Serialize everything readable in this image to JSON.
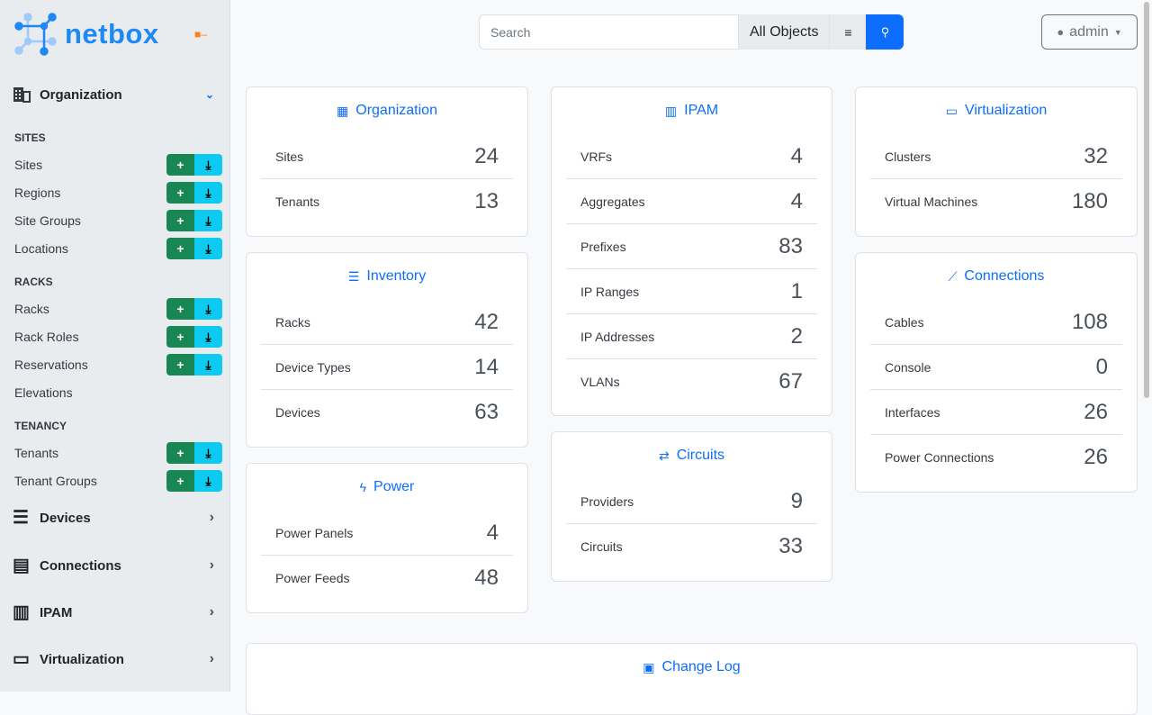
{
  "brand": {
    "name": "netbox",
    "accent": "#0d6efd"
  },
  "sidebar": {
    "expanded": {
      "label": "Organization",
      "icon": "building-icon"
    },
    "groups": [
      {
        "label": "SITES",
        "items": [
          {
            "label": "Sites",
            "buttons": true
          },
          {
            "label": "Regions",
            "buttons": true
          },
          {
            "label": "Site Groups",
            "buttons": true
          },
          {
            "label": "Locations",
            "buttons": true
          }
        ]
      },
      {
        "label": "RACKS",
        "items": [
          {
            "label": "Racks",
            "buttons": true
          },
          {
            "label": "Rack Roles",
            "buttons": true
          },
          {
            "label": "Reservations",
            "buttons": true
          },
          {
            "label": "Elevations",
            "buttons": false
          }
        ]
      },
      {
        "label": "TENANCY",
        "items": [
          {
            "label": "Tenants",
            "buttons": true
          },
          {
            "label": "Tenant Groups",
            "buttons": true
          }
        ]
      }
    ],
    "sections": [
      {
        "label": "Devices",
        "icon": "server-icon"
      },
      {
        "label": "Connections",
        "icon": "ethernet-icon"
      },
      {
        "label": "IPAM",
        "icon": "ipam-icon"
      },
      {
        "label": "Virtualization",
        "icon": "monitor-icon"
      }
    ]
  },
  "header": {
    "search_placeholder": "Search",
    "search_value": "",
    "scope": "All Objects",
    "user": "admin"
  },
  "cards": [
    {
      "title": "Organization",
      "icon": "building-icon",
      "rows": [
        [
          "Sites",
          24
        ],
        [
          "Tenants",
          13
        ]
      ]
    },
    {
      "title": "Inventory",
      "icon": "server-icon",
      "rows": [
        [
          "Racks",
          42
        ],
        [
          "Device Types",
          14
        ],
        [
          "Devices",
          63
        ]
      ]
    },
    {
      "title": "Power",
      "icon": "lightning-icon",
      "rows": [
        [
          "Power Panels",
          4
        ],
        [
          "Power Feeds",
          48
        ]
      ]
    },
    {
      "title": "IPAM",
      "icon": "ipam-icon",
      "rows": [
        [
          "VRFs",
          4
        ],
        [
          "Aggregates",
          4
        ],
        [
          "Prefixes",
          83
        ],
        [
          "IP Ranges",
          1
        ],
        [
          "IP Addresses",
          2
        ],
        [
          "VLANs",
          67
        ]
      ]
    },
    {
      "title": "Circuits",
      "icon": "transit-icon",
      "rows": [
        [
          "Providers",
          9
        ],
        [
          "Circuits",
          33
        ]
      ]
    },
    {
      "title": "Virtualization",
      "icon": "monitor-icon",
      "rows": [
        [
          "Clusters",
          32
        ],
        [
          "Virtual Machines",
          180
        ]
      ]
    },
    {
      "title": "Connections",
      "icon": "cable-icon",
      "rows": [
        [
          "Cables",
          108
        ],
        [
          "Console",
          0
        ],
        [
          "Interfaces",
          26
        ],
        [
          "Power Connections",
          26
        ]
      ]
    },
    {
      "title": "Change Log",
      "icon": "clipboard-clock-icon",
      "rows": []
    }
  ]
}
